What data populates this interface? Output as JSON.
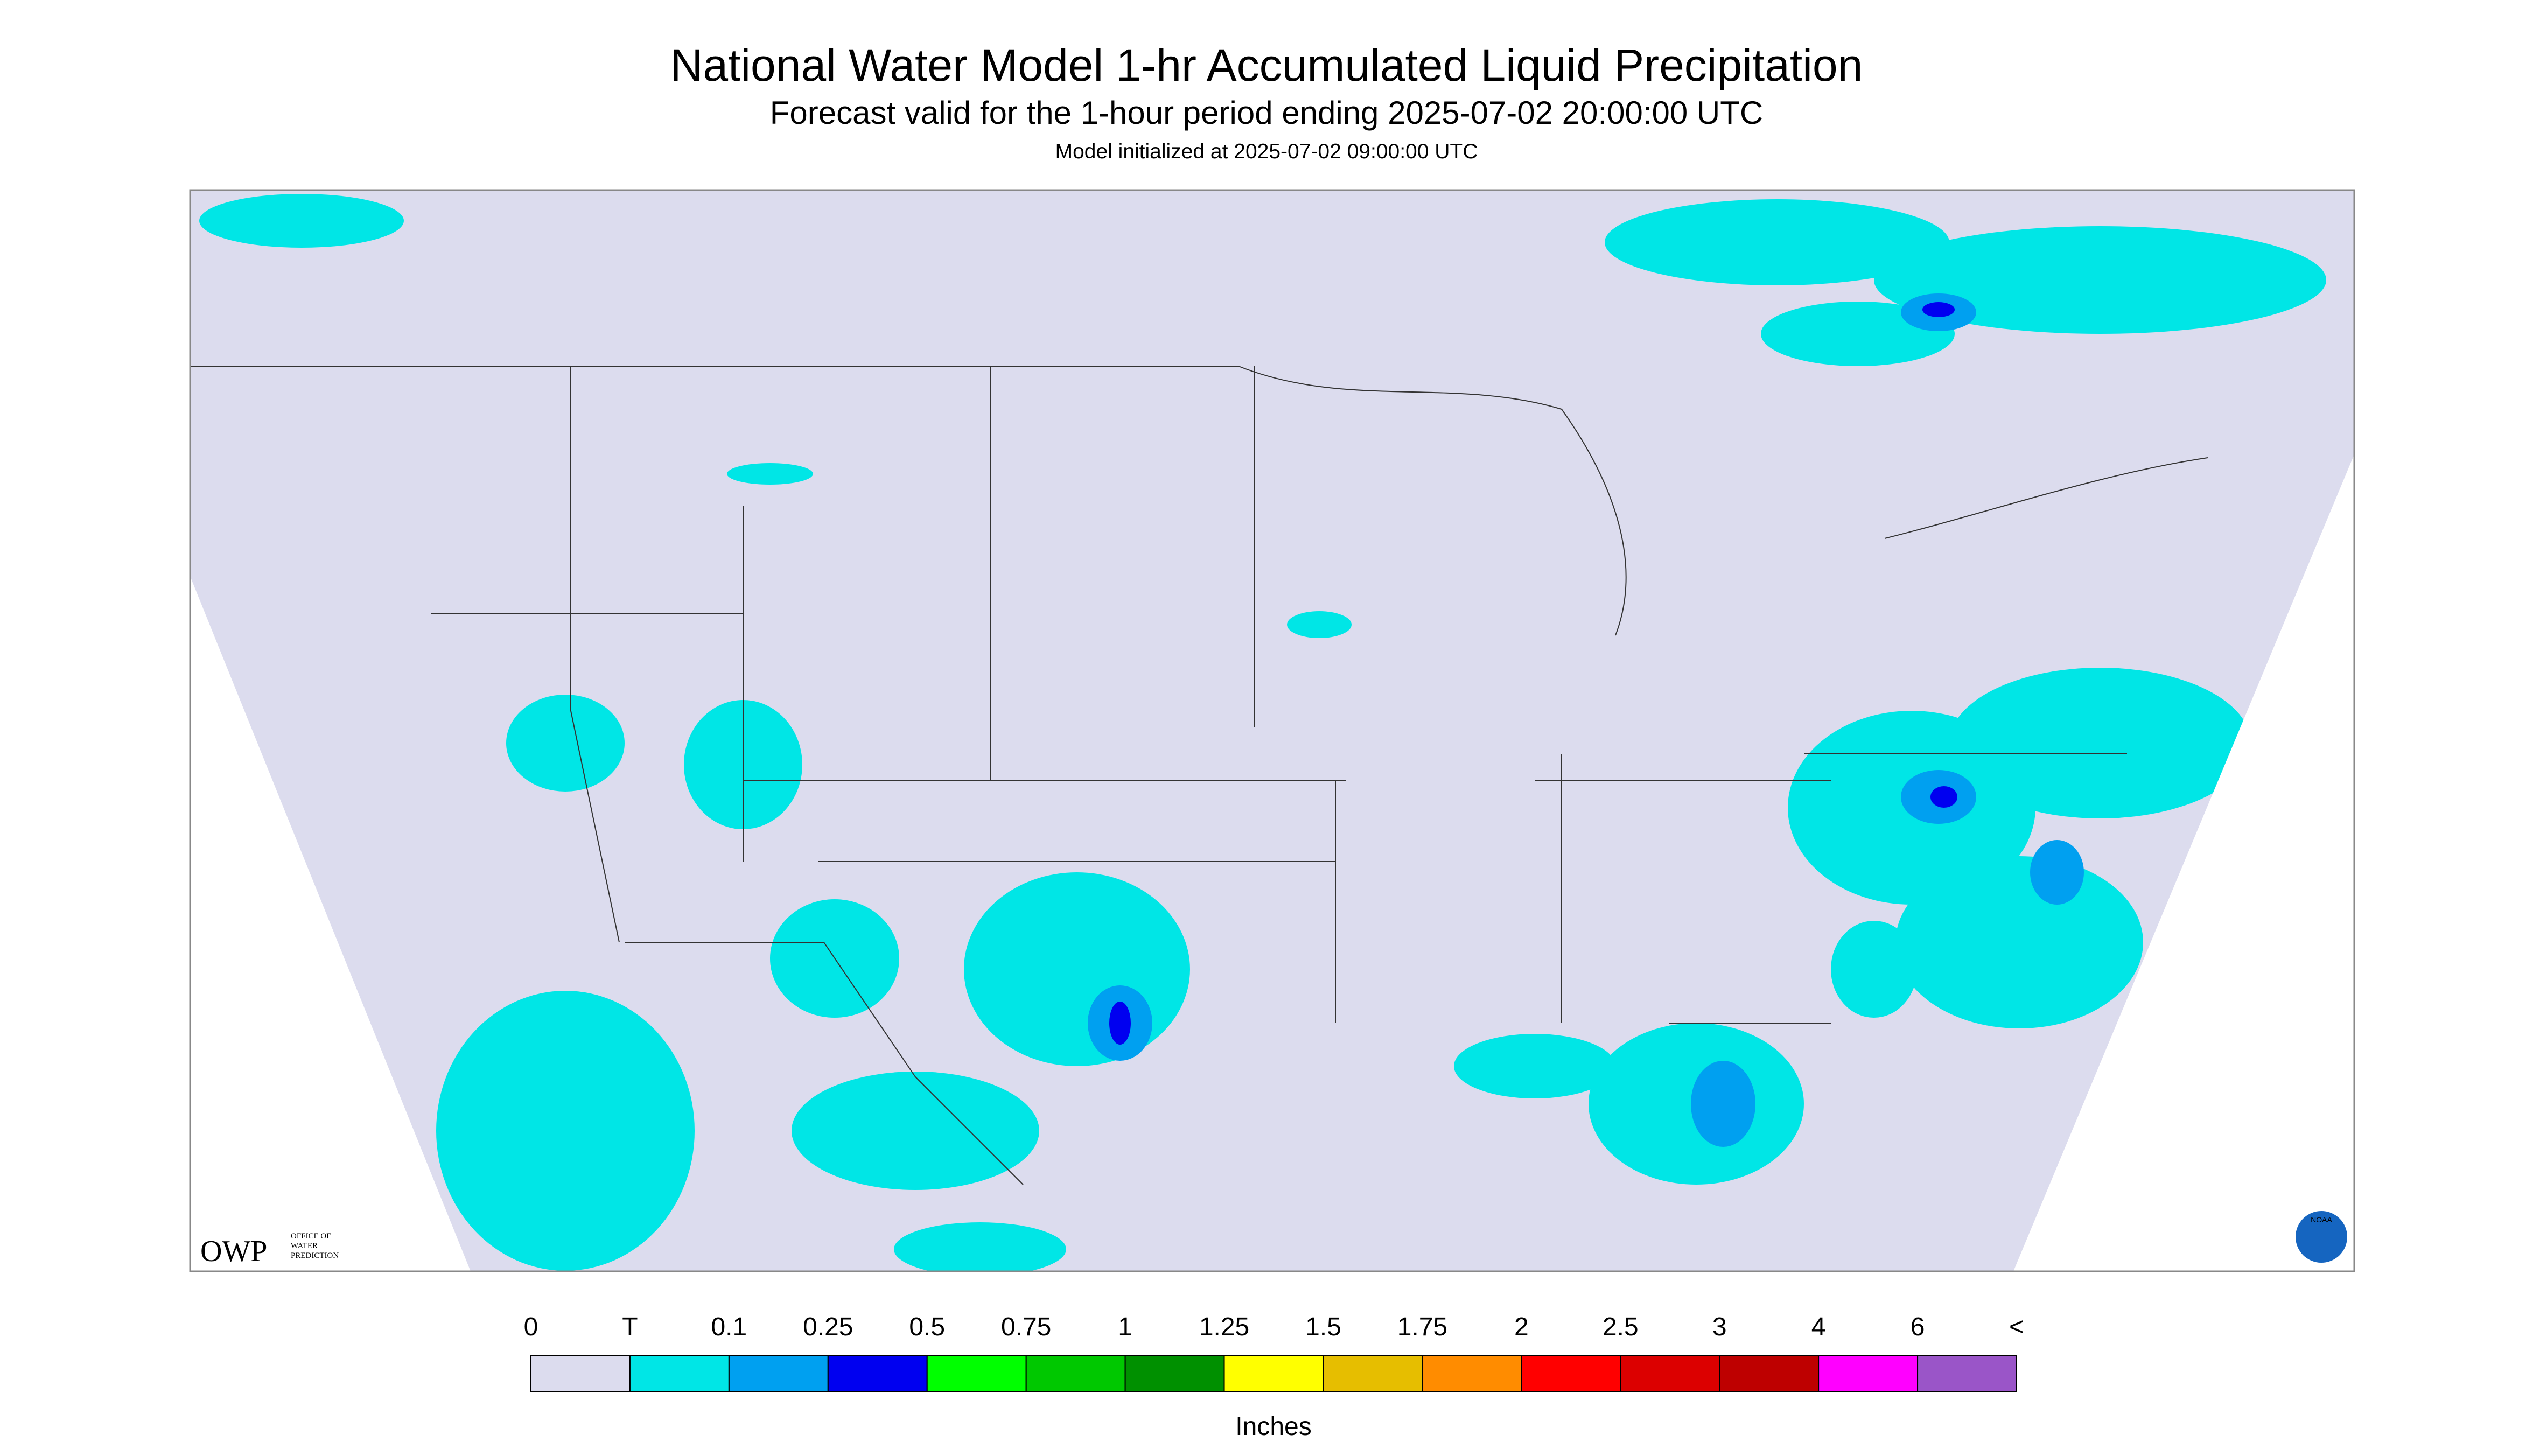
{
  "header": {
    "title": "National Water Model 1-hr Accumulated Liquid Precipitation",
    "subtitle": "Forecast valid for the 1-hour period ending 2025-07-02 20:00:00 UTC",
    "init": "Model initialized at 2025-07-02 09:00:00 UTC"
  },
  "logos": {
    "owp": "OWP",
    "owp_name": [
      "OFFICE OF",
      "WATER",
      "PREDICTION"
    ],
    "noaa": "NOAA"
  },
  "legend": {
    "labels": [
      "0",
      "T",
      "0.1",
      "0.25",
      "0.5",
      "0.75",
      "1",
      "1.25",
      "1.5",
      "1.75",
      "2",
      "2.5",
      "3",
      "4",
      "6",
      "<"
    ],
    "colors": [
      "#dcdcee",
      "#00e6e6",
      "#00a0f0",
      "#0000f0",
      "#00ff00",
      "#00c800",
      "#009000",
      "#ffff00",
      "#e6be00",
      "#ff8c00",
      "#ff0000",
      "#dc0000",
      "#be0000",
      "#ff00ff",
      "#9a55c8"
    ],
    "units": "Inches"
  }
}
